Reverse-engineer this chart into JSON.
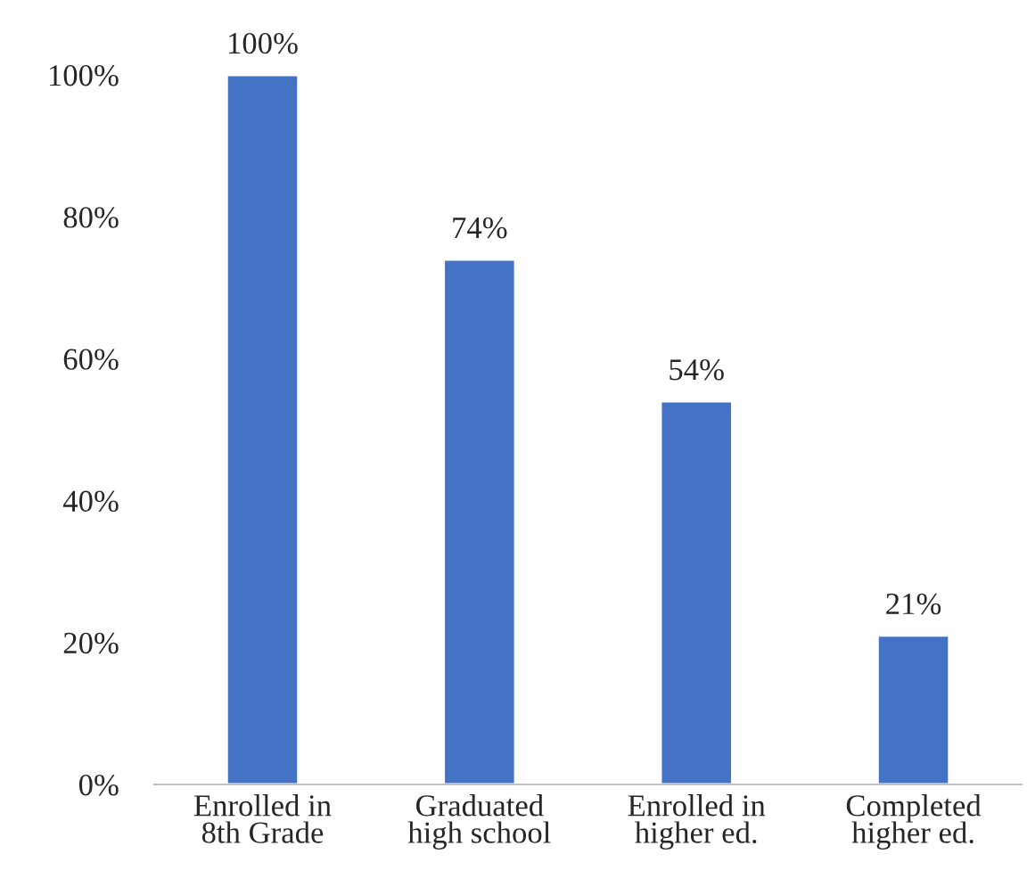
{
  "chart_data": {
    "type": "bar",
    "categories": [
      "Enrolled in\n8th Grade",
      "Graduated\nhigh school",
      "Enrolled in\nhigher ed.",
      "Completed\nhigher ed."
    ],
    "values": [
      100,
      74,
      54,
      21
    ],
    "value_labels": [
      "100%",
      "74%",
      "54%",
      "21%"
    ],
    "color": "#4472c4",
    "ylim": [
      0,
      100
    ],
    "yticks": [
      {
        "value": 0,
        "label": "0%"
      },
      {
        "value": 20,
        "label": "20%"
      },
      {
        "value": 40,
        "label": "40%"
      },
      {
        "value": 60,
        "label": "60%"
      },
      {
        "value": 80,
        "label": "80%"
      },
      {
        "value": 100,
        "label": "100%"
      }
    ],
    "grid": false,
    "legend": false
  }
}
